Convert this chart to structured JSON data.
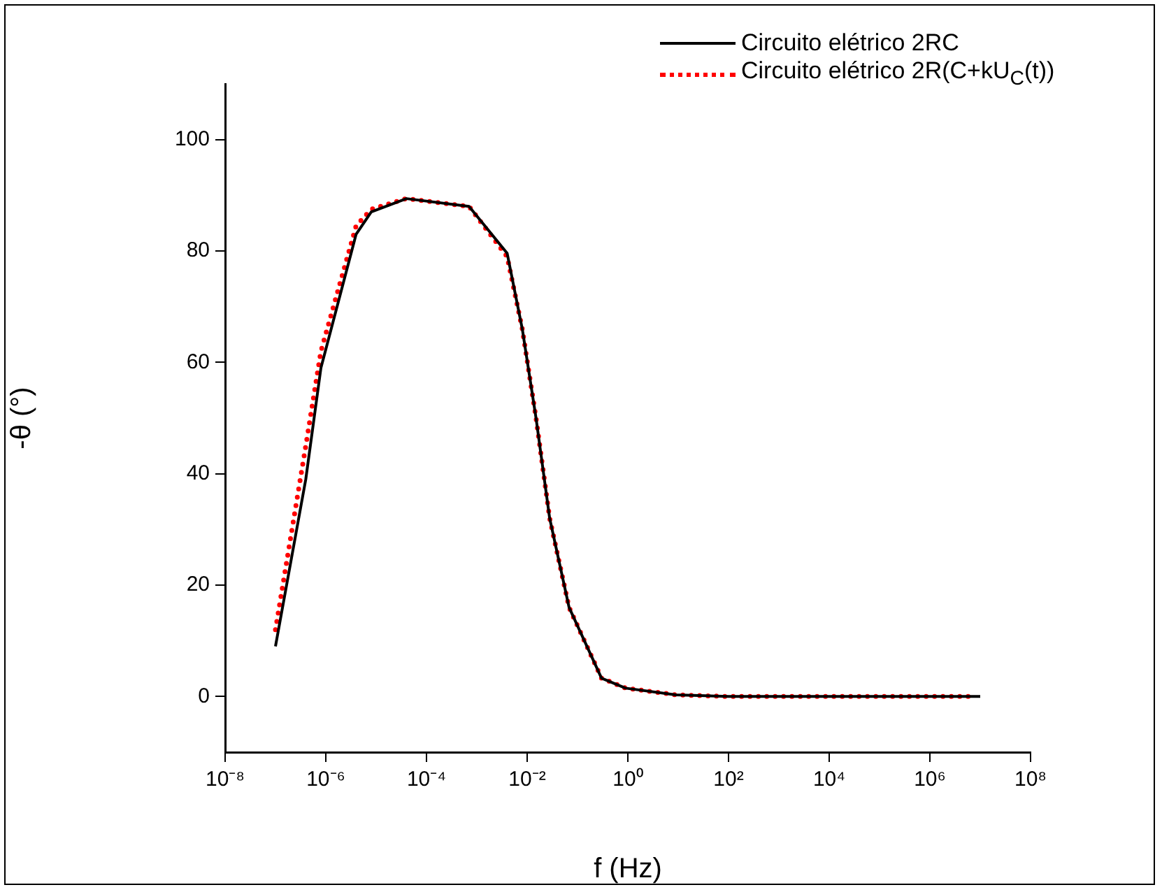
{
  "chart_data": {
    "type": "line",
    "xlabel": "f (Hz)",
    "ylabel": "-θ (°)",
    "log": "x",
    "xlim": [
      1e-08,
      100000000.0
    ],
    "xticks": [
      {
        "value": 1e-08,
        "label": "10⁻⁸"
      },
      {
        "value": 1e-06,
        "label": "10⁻⁶"
      },
      {
        "value": 0.0001,
        "label": "10⁻⁴"
      },
      {
        "value": 0.01,
        "label": "10⁻²"
      },
      {
        "value": 1,
        "label": "10⁰"
      },
      {
        "value": 100,
        "label": "10²"
      },
      {
        "value": 10000.0,
        "label": "10⁴"
      },
      {
        "value": 1000000.0,
        "label": "10⁶"
      },
      {
        "value": 100000000.0,
        "label": "10⁸"
      }
    ],
    "ylim": [
      -10,
      110
    ],
    "yticks": [
      0,
      20,
      40,
      60,
      80,
      100
    ],
    "grid": false,
    "legend": "top right",
    "marker": "none",
    "series": [
      {
        "name": "Circuito elétrico 2RC",
        "color": "#000000",
        "line_style": "solid",
        "x": [
          1e-07,
          4e-07,
          8e-07,
          4e-06,
          8e-06,
          4e-05,
          0.0007,
          0.004,
          0.008,
          0.015,
          0.028,
          0.068,
          0.3,
          0.9,
          9,
          100,
          1000,
          10000,
          100000,
          1000000,
          10000000
        ],
        "values": [
          9,
          39,
          59,
          83,
          87,
          89.4,
          88,
          79.6,
          66,
          50,
          32,
          16,
          3.3,
          1.5,
          0.3,
          0,
          0,
          0,
          0,
          0,
          0
        ]
      },
      {
        "name": "Circuito elétrico 2R(C+kU$_{C}$(t))",
        "color": "#ff0000",
        "line_style": "dotted",
        "x": [
          1e-07,
          4e-07,
          8e-07,
          4e-06,
          8e-06,
          4e-05,
          0.0007,
          0.004,
          0.008,
          0.015,
          0.028,
          0.068,
          0.3,
          0.9,
          9,
          100,
          1000,
          10000,
          100000,
          1000000,
          6000000
        ],
        "values": [
          12,
          45,
          62,
          84.5,
          87.5,
          89.4,
          88,
          79,
          66,
          50,
          32,
          16,
          3.3,
          1.5,
          0.3,
          0,
          0,
          0,
          0,
          0,
          0
        ]
      }
    ]
  }
}
